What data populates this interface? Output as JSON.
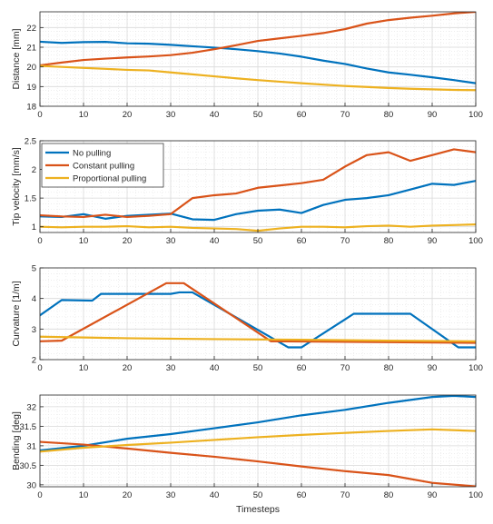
{
  "chart_data": [
    {
      "type": "line",
      "ylabel": "Distance [mm]",
      "xlim": [
        0,
        100
      ],
      "ylim": [
        18,
        22.8
      ],
      "xticks": [
        0,
        10,
        20,
        30,
        40,
        50,
        60,
        70,
        80,
        90,
        100
      ],
      "yticks": [
        18,
        19,
        20,
        21,
        22
      ],
      "grid": true,
      "series": [
        {
          "color": "#0072BD",
          "x": [
            0,
            5,
            10,
            15,
            20,
            25,
            30,
            35,
            40,
            45,
            50,
            55,
            60,
            65,
            70,
            75,
            80,
            85,
            90,
            95,
            100
          ],
          "y": [
            21.28,
            21.22,
            21.26,
            21.27,
            21.2,
            21.18,
            21.12,
            21.05,
            20.98,
            20.9,
            20.8,
            20.68,
            20.52,
            20.32,
            20.15,
            19.92,
            19.72,
            19.6,
            19.47,
            19.33,
            19.17
          ]
        },
        {
          "color": "#D95319",
          "x": [
            0,
            5,
            10,
            15,
            20,
            25,
            30,
            35,
            40,
            45,
            50,
            55,
            60,
            65,
            70,
            75,
            80,
            85,
            90,
            95,
            100
          ],
          "y": [
            20.08,
            20.22,
            20.35,
            20.42,
            20.48,
            20.53,
            20.6,
            20.72,
            20.9,
            21.1,
            21.32,
            21.45,
            21.58,
            21.72,
            21.92,
            22.2,
            22.38,
            22.5,
            22.6,
            22.72,
            22.8
          ]
        },
        {
          "color": "#EDB120",
          "x": [
            0,
            5,
            10,
            15,
            20,
            25,
            30,
            35,
            40,
            45,
            50,
            55,
            60,
            65,
            70,
            75,
            80,
            85,
            90,
            95,
            100
          ],
          "y": [
            20.05,
            20.0,
            19.95,
            19.9,
            19.85,
            19.82,
            19.72,
            19.62,
            19.52,
            19.42,
            19.33,
            19.25,
            19.17,
            19.1,
            19.03,
            18.98,
            18.93,
            18.89,
            18.86,
            18.83,
            18.82
          ]
        }
      ]
    },
    {
      "type": "line",
      "ylabel": "Tip velocity [mm/s]",
      "xlim": [
        0,
        100
      ],
      "ylim": [
        0.9,
        2.5
      ],
      "xticks": [
        0,
        10,
        20,
        30,
        40,
        50,
        60,
        70,
        80,
        90,
        100
      ],
      "yticks": [
        1,
        1.5,
        2,
        2.5
      ],
      "grid": true,
      "legend": {
        "placement": "top-left",
        "entries": [
          "No pulling",
          "Constant pulling",
          "Proportional pulling"
        ]
      },
      "series": [
        {
          "name": "No pulling",
          "color": "#0072BD",
          "x": [
            0,
            5,
            10,
            15,
            20,
            25,
            30,
            35,
            40,
            45,
            50,
            55,
            60,
            65,
            70,
            75,
            80,
            85,
            90,
            95,
            100
          ],
          "y": [
            1.18,
            1.17,
            1.22,
            1.14,
            1.19,
            1.21,
            1.23,
            1.13,
            1.12,
            1.22,
            1.28,
            1.3,
            1.24,
            1.38,
            1.47,
            1.5,
            1.55,
            1.65,
            1.75,
            1.73,
            1.8
          ]
        },
        {
          "name": "Constant pulling",
          "color": "#D95319",
          "x": [
            0,
            5,
            10,
            15,
            20,
            25,
            30,
            35,
            40,
            45,
            50,
            55,
            60,
            65,
            70,
            75,
            80,
            85,
            90,
            95,
            100
          ],
          "y": [
            1.2,
            1.18,
            1.17,
            1.21,
            1.17,
            1.19,
            1.22,
            1.5,
            1.55,
            1.58,
            1.68,
            1.72,
            1.76,
            1.82,
            2.05,
            2.25,
            2.3,
            2.15,
            2.25,
            2.35,
            2.3
          ]
        },
        {
          "name": "Proportional pulling",
          "color": "#EDB120",
          "x": [
            0,
            5,
            10,
            15,
            20,
            25,
            30,
            35,
            40,
            45,
            50,
            55,
            60,
            65,
            70,
            75,
            80,
            85,
            90,
            95,
            100
          ],
          "y": [
            1.0,
            0.99,
            1.0,
            1.0,
            1.01,
            0.99,
            1.0,
            0.98,
            0.97,
            0.96,
            0.93,
            0.97,
            1.0,
            1.0,
            0.99,
            1.01,
            1.02,
            1.0,
            1.02,
            1.03,
            1.04
          ]
        }
      ]
    },
    {
      "type": "line",
      "ylabel": "Curvature [1/m]",
      "xlim": [
        0,
        100
      ],
      "ylim": [
        2,
        5
      ],
      "xticks": [
        0,
        10,
        20,
        30,
        40,
        50,
        60,
        70,
        80,
        90,
        100
      ],
      "yticks": [
        2,
        3,
        4,
        5
      ],
      "grid": true,
      "series": [
        {
          "color": "#0072BD",
          "x": [
            0,
            5,
            12,
            14,
            30,
            32,
            35,
            57,
            60,
            72,
            85,
            96,
            100
          ],
          "y": [
            3.45,
            3.95,
            3.93,
            4.15,
            4.15,
            4.2,
            4.2,
            2.4,
            2.4,
            3.5,
            3.5,
            2.4,
            2.4
          ]
        },
        {
          "color": "#D95319",
          "x": [
            0,
            5,
            29,
            33,
            53,
            100
          ],
          "y": [
            2.6,
            2.62,
            4.5,
            4.5,
            2.6,
            2.55
          ]
        },
        {
          "color": "#EDB120",
          "x": [
            0,
            20,
            40,
            60,
            80,
            100
          ],
          "y": [
            2.75,
            2.7,
            2.67,
            2.65,
            2.62,
            2.6
          ]
        }
      ]
    },
    {
      "type": "line",
      "ylabel": "Bending [deg]",
      "xlabel": "Timesteps",
      "xlim": [
        0,
        100
      ],
      "ylim": [
        29.95,
        32.3
      ],
      "xticks": [
        0,
        10,
        20,
        30,
        40,
        50,
        60,
        70,
        80,
        90,
        100
      ],
      "yticks": [
        30,
        30.5,
        31,
        31.5,
        32
      ],
      "grid": true,
      "series": [
        {
          "color": "#0072BD",
          "x": [
            0,
            10,
            20,
            30,
            40,
            50,
            60,
            70,
            80,
            90,
            95,
            100
          ],
          "y": [
            30.88,
            31.0,
            31.18,
            31.3,
            31.45,
            31.6,
            31.78,
            31.92,
            32.1,
            32.25,
            32.28,
            32.25
          ]
        },
        {
          "color": "#D95319",
          "x": [
            0,
            10,
            20,
            30,
            40,
            50,
            60,
            70,
            80,
            90,
            100
          ],
          "y": [
            31.1,
            31.03,
            30.93,
            30.82,
            30.72,
            30.6,
            30.47,
            30.35,
            30.25,
            30.05,
            29.96
          ]
        },
        {
          "color": "#EDB120",
          "x": [
            0,
            10,
            20,
            30,
            40,
            50,
            60,
            70,
            80,
            90,
            100
          ],
          "y": [
            30.85,
            30.95,
            31.02,
            31.08,
            31.15,
            31.22,
            31.28,
            31.33,
            31.38,
            31.42,
            31.38
          ]
        }
      ]
    }
  ]
}
